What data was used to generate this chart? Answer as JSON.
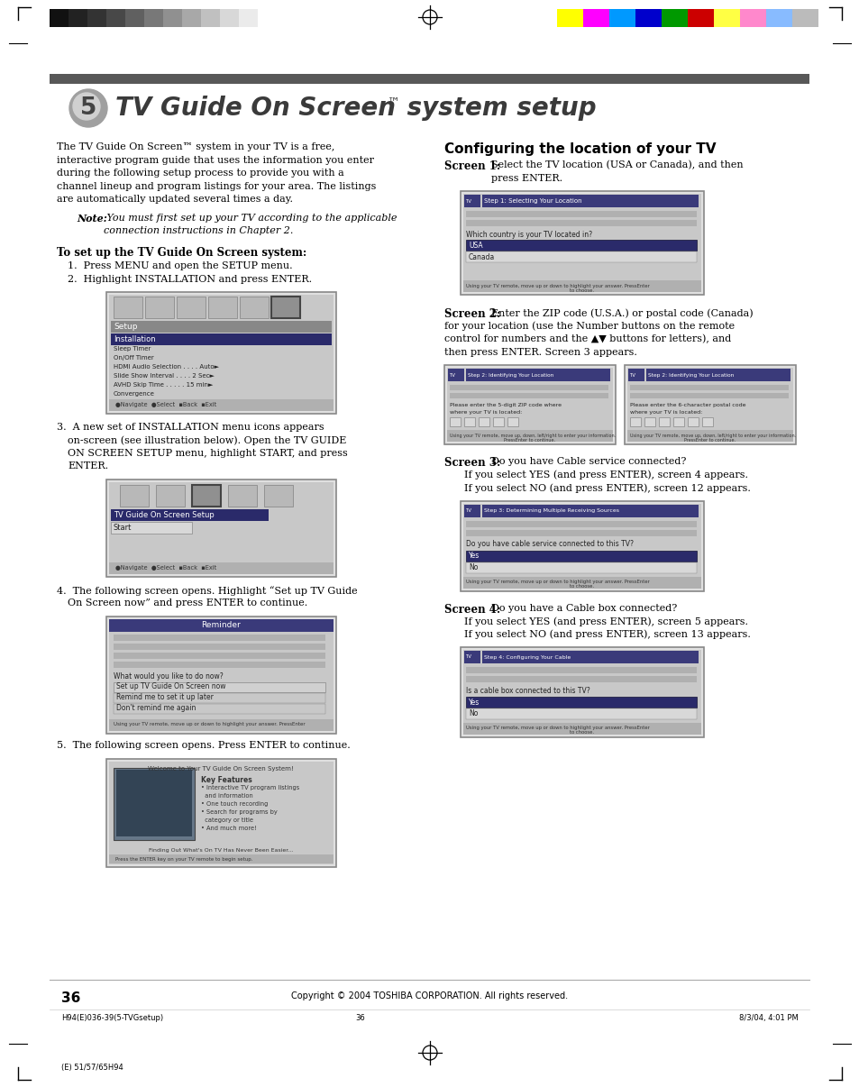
{
  "page_number": "36",
  "copyright": "Copyright © 2004 TOSHIBA CORPORATION. All rights reserved.",
  "footer_left": "H94(E)036-39(5-TVGsetup)",
  "footer_center": "36",
  "footer_right": "8/3/04, 4:01 PM",
  "footer_bottom": "(E) 51/57/65H94",
  "chapter_number": "5",
  "background_color": "#ffffff",
  "gray_bars": [
    "#111111",
    "#222222",
    "#333333",
    "#484848",
    "#606060",
    "#787878",
    "#909090",
    "#a8a8a8",
    "#c0c0c0",
    "#d8d8d8",
    "#ebebeb",
    "#ffffff"
  ],
  "color_bars": [
    "#ffff00",
    "#ff00ff",
    "#0099ff",
    "#0000cc",
    "#009900",
    "#cc0000",
    "#ffff44",
    "#ff88cc",
    "#88bbff",
    "#bbbbbb"
  ],
  "screen_bg": "#d4d4d4",
  "screen_inner_bg": "#c8c8c8",
  "blue_bar": "#3a3a7a",
  "dark_highlight": "#2a2a5a",
  "light_item": "#e0e0e0",
  "nav_bar": "#b0b0b0",
  "gray_bar_header": "#787878"
}
